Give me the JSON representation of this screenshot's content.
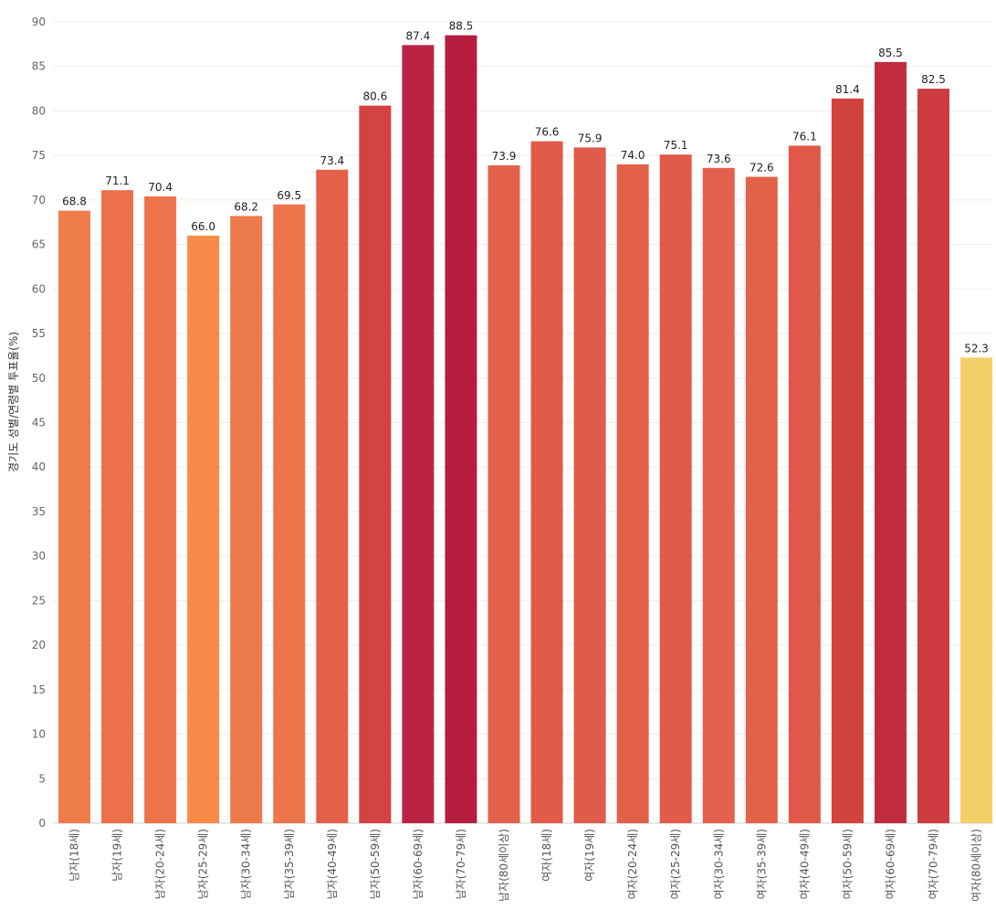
{
  "chart_data": {
    "type": "bar",
    "ylabel": "경기도 성별/연령별 투표율(%)",
    "ylim": [
      0,
      90
    ],
    "yticks": [
      0,
      5,
      10,
      15,
      20,
      25,
      30,
      35,
      40,
      45,
      50,
      55,
      60,
      65,
      70,
      75,
      80,
      85,
      90
    ],
    "grid": true,
    "categories": [
      "남자(18세)",
      "남자(19세)",
      "남자(20-24세)",
      "남자(25-29세)",
      "남자(30-34세)",
      "남자(35-39세)",
      "남자(40-49세)",
      "남자(50-59세)",
      "남자(60-69세)",
      "남자(70-79세)",
      "남자(80세이상)",
      "여자(18세)",
      "여자(19세)",
      "여자(20-24세)",
      "여자(25-29세)",
      "여자(30-34세)",
      "여자(35-39세)",
      "여자(40-49세)",
      "여자(50-59세)",
      "여자(60-69세)",
      "여자(70-79세)",
      "여자(80세이상)"
    ],
    "values": [
      68.8,
      71.1,
      70.4,
      66.0,
      68.2,
      69.5,
      73.4,
      80.6,
      87.4,
      88.5,
      73.9,
      76.6,
      75.9,
      74.0,
      75.1,
      73.6,
      72.6,
      76.1,
      81.4,
      85.5,
      82.5,
      52.3
    ],
    "value_labels": [
      "68.8",
      "71.1",
      "70.4",
      "66.0",
      "68.2",
      "69.5",
      "73.4",
      "80.6",
      "87.4",
      "88.5",
      "73.9",
      "76.6",
      "75.9",
      "74.0",
      "75.1",
      "73.6",
      "72.6",
      "76.1",
      "81.4",
      "85.5",
      "82.5",
      "52.3"
    ],
    "colors": [
      "#ee7d4a",
      "#ec7049",
      "#ed744a",
      "#f88b4a",
      "#ed7a4b",
      "#ec7549",
      "#e5604a",
      "#d44344",
      "#ba2442",
      "#b61e40",
      "#e3614a",
      "#e25a49",
      "#e05b49",
      "#e25f4a",
      "#e25a49",
      "#e3604a",
      "#e3634a",
      "#e05948",
      "#d2423f",
      "#c12b40",
      "#ce3c41",
      "#f3cf68"
    ]
  }
}
